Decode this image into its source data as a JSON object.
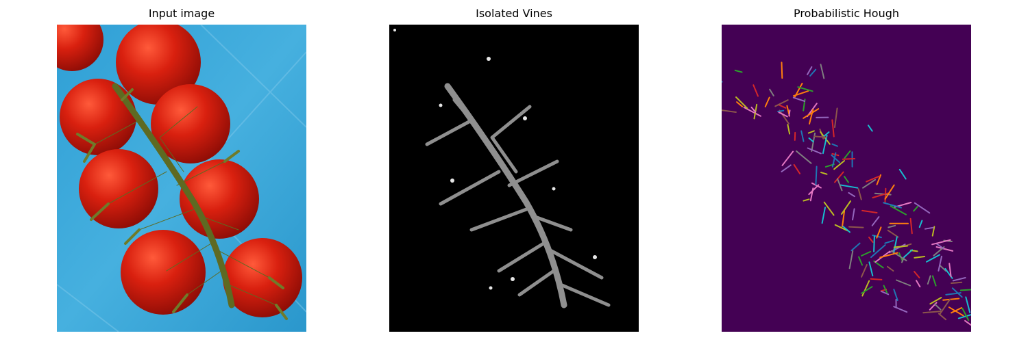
{
  "panels": [
    {
      "title": "Input image"
    },
    {
      "title": "Isolated Vines"
    },
    {
      "title": "Probabilistic Hough"
    }
  ],
  "colors": {
    "background": "#ffffff",
    "tray_blue": "#3aa9d9",
    "tomato_red": "#c8170c",
    "vine_green": "#5e6a22",
    "mask_black": "#000000",
    "mask_vine_gray": "#8f8f8f",
    "hough_background": "#440154",
    "hough_line_palette": [
      "#1f77b4",
      "#ff7f0e",
      "#2ca02c",
      "#d62728",
      "#9467bd",
      "#8c564b",
      "#e377c2",
      "#7f7f7f",
      "#bcbd22",
      "#17becf"
    ]
  }
}
